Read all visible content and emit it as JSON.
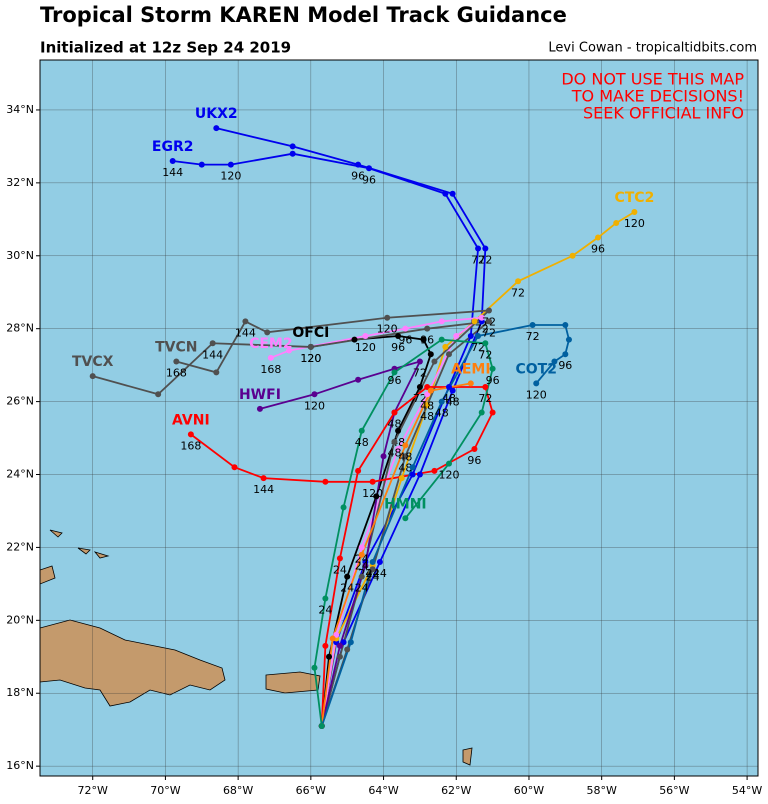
{
  "header": {
    "title": "Tropical Storm KAREN Model Track Guidance",
    "subtitle": "Initialized at 12z Sep 24 2019",
    "credit": "Levi Cowan - tropicaltidbits.com",
    "warning": [
      "DO NOT USE THIS MAP",
      "TO MAKE DECISIONS!",
      "SEEK OFFICIAL INFO"
    ]
  },
  "map": {
    "xlim": [
      -73.45,
      -53.7
    ],
    "ylim": [
      15.73,
      35.37
    ],
    "xticks": [
      {
        "value": -72,
        "label": "72°W"
      },
      {
        "value": -70,
        "label": "70°W"
      },
      {
        "value": -68,
        "label": "68°W"
      },
      {
        "value": -66,
        "label": "66°W"
      },
      {
        "value": -64,
        "label": "64°W"
      },
      {
        "value": -62,
        "label": "62°W"
      },
      {
        "value": -60,
        "label": "60°W"
      },
      {
        "value": -58,
        "label": "58°W"
      },
      {
        "value": -56,
        "label": "56°W"
      },
      {
        "value": -54,
        "label": "54°W"
      }
    ],
    "yticks": [
      {
        "value": 16,
        "label": "16°N"
      },
      {
        "value": 18,
        "label": "18°N"
      },
      {
        "value": 20,
        "label": "20°N"
      },
      {
        "value": 22,
        "label": "22°N"
      },
      {
        "value": 24,
        "label": "24°N"
      },
      {
        "value": 26,
        "label": "26°N"
      },
      {
        "value": 28,
        "label": "28°N"
      },
      {
        "value": 30,
        "label": "30°N"
      },
      {
        "value": 32,
        "label": "32°N"
      },
      {
        "value": 34,
        "label": "34°N"
      }
    ],
    "grid": true
  },
  "tracks": [
    {
      "name": "EGR2",
      "color": "#0000ee",
      "lon": [
        -65.7,
        -65.3,
        -64.5,
        -63.2,
        -62.2,
        -61.6,
        -61.4,
        -62.3,
        -64.4,
        -66.5,
        -68.2,
        -69.0,
        -69.8
      ],
      "lat": [
        17.1,
        19.4,
        21.6,
        24.0,
        26.4,
        27.8,
        30.2,
        31.7,
        32.4,
        32.8,
        32.5,
        32.5,
        32.6
      ],
      "hour_labels": [
        null,
        null,
        "24",
        null,
        "48",
        null,
        "72",
        null,
        "96",
        null,
        "120",
        null,
        "144"
      ]
    },
    {
      "name": "UKX2",
      "color": "#0000ee",
      "lon": [
        -65.7,
        -65.1,
        -64.1,
        -63.0,
        -62.1,
        -61.3,
        -61.2,
        -62.1,
        -64.7,
        -66.5,
        -68.6
      ],
      "lat": [
        17.1,
        19.4,
        21.6,
        24.0,
        26.3,
        28.2,
        30.2,
        31.7,
        32.5,
        33.0,
        33.5
      ],
      "hour_labels": [
        null,
        null,
        "24",
        null,
        "48",
        null,
        "72",
        null,
        "96",
        null,
        null
      ]
    },
    {
      "name": "CTC2",
      "color": "#f0b000",
      "lon": [
        -65.7,
        -65.3,
        -64.3,
        -63.5,
        -62.8,
        -62.3,
        -61.5,
        -60.3,
        -58.8,
        -58.1,
        -57.6,
        -57.1
      ],
      "lat": [
        17.1,
        19.5,
        21.5,
        23.9,
        25.9,
        27.5,
        28.2,
        29.3,
        30.0,
        30.5,
        30.9,
        31.2
      ],
      "hour_labels": [
        null,
        null,
        "24",
        null,
        "48",
        null,
        null,
        "72",
        null,
        "96",
        null,
        "120"
      ]
    },
    {
      "name": "OFCI",
      "color": "#000000",
      "lon": [
        -65.7,
        -65.5,
        -65.0,
        -64.2,
        -63.6,
        -63.0,
        -62.7,
        -62.9,
        -63.6,
        -64.8,
        -66.0
      ],
      "lat": [
        17.1,
        19.0,
        21.2,
        23.4,
        25.2,
        26.4,
        27.3,
        27.7,
        27.8,
        27.7,
        27.5
      ],
      "hour_labels": [
        null,
        null,
        "24",
        null,
        "48",
        "72",
        null,
        null,
        "96",
        null,
        "120"
      ]
    },
    {
      "name": "CEM2",
      "color": "#ff80ff",
      "lon": [
        -65.7,
        -65.3,
        -64.6,
        -63.6,
        -62.8,
        -62.0,
        -61.3,
        -62.4,
        -63.4,
        -64.5,
        -66.6,
        -67.1
      ],
      "lat": [
        17.1,
        19.6,
        22.0,
        24.7,
        26.2,
        27.8,
        28.3,
        28.2,
        28.0,
        27.8,
        27.4,
        27.2
      ],
      "hour_labels": [
        null,
        null,
        "24",
        null,
        "48",
        null,
        "72",
        null,
        "96",
        "120",
        null,
        "168"
      ]
    },
    {
      "name": "TVCN",
      "color": "#505050",
      "lon": [
        -65.7,
        -65.2,
        -64.6,
        -63.7,
        -62.6,
        -61.1,
        -63.9,
        -67.2,
        -67.8,
        -68.6,
        -69.7
      ],
      "lat": [
        17.1,
        19.0,
        21.2,
        24.9,
        27.1,
        28.5,
        28.3,
        27.9,
        28.2,
        26.8,
        27.1
      ],
      "hour_labels": [
        null,
        null,
        "24",
        "48",
        null,
        "72",
        "120",
        null,
        "144",
        null,
        "168"
      ]
    },
    {
      "name": "TVCX",
      "color": "#505050",
      "lon": [
        -65.7,
        -65.0,
        -64.3,
        -63.4,
        -62.2,
        -61.1,
        -62.8,
        -66.0,
        -68.7,
        -70.2,
        -72.0
      ],
      "lat": [
        17.1,
        19.2,
        21.4,
        24.5,
        27.3,
        28.2,
        28.0,
        27.5,
        27.6,
        26.2,
        26.7
      ],
      "hour_labels": [
        null,
        null,
        null,
        "48",
        null,
        "72",
        "96",
        "120",
        "144",
        null,
        null
      ]
    },
    {
      "name": "HWFI",
      "color": "#5a0090",
      "lon": [
        -65.7,
        -65.2,
        -64.5,
        -64.0,
        -63.7,
        -63.0,
        -63.7,
        -64.7,
        -65.9,
        -67.4
      ],
      "lat": [
        17.1,
        19.3,
        21.5,
        24.5,
        25.7,
        27.1,
        26.9,
        26.6,
        26.2,
        25.8
      ],
      "hour_labels": [
        null,
        null,
        null,
        null,
        null,
        "72",
        "96",
        null,
        "120",
        null
      ]
    },
    {
      "name": "AVNI",
      "color": "#ff0000",
      "lon": [
        -65.7,
        -65.6,
        -65.2,
        -64.7,
        -63.7,
        -62.8,
        -61.2,
        -61.0,
        -61.5,
        -62.6,
        -64.3,
        -65.6,
        -67.3,
        -68.1,
        -69.3
      ],
      "lat": [
        17.1,
        19.3,
        21.7,
        24.1,
        25.7,
        26.4,
        26.4,
        25.7,
        24.7,
        24.1,
        23.8,
        23.8,
        23.9,
        24.2,
        25.1
      ],
      "hour_labels": [
        null,
        null,
        "24",
        null,
        "48",
        null,
        "72",
        null,
        "96",
        null,
        "120",
        null,
        "144",
        null,
        "168"
      ]
    },
    {
      "name": "AEMI",
      "color": "#ff7f0e",
      "lon": [
        -65.7,
        -65.4,
        -64.6,
        -63.4,
        -62.7,
        -61.6
      ],
      "lat": [
        17.1,
        19.5,
        21.8,
        24.8,
        26.3,
        26.5
      ],
      "hour_labels": [
        null,
        null,
        "24",
        "48",
        null,
        null
      ]
    },
    {
      "name": "COT2",
      "color": "#0060a0",
      "lon": [
        -65.7,
        -64.9,
        -64.3,
        -63.2,
        -62.4,
        -61.4,
        -59.9,
        -59.0,
        -58.9,
        -59.0,
        -59.3,
        -59.8
      ],
      "lat": [
        17.1,
        19.4,
        21.6,
        24.2,
        26.0,
        27.8,
        28.1,
        28.1,
        27.7,
        27.3,
        27.1,
        26.5
      ],
      "hour_labels": [
        null,
        null,
        "24",
        null,
        "48",
        "72",
        "72",
        null,
        null,
        "96",
        null,
        "120"
      ]
    },
    {
      "name": "HMNI",
      "color": "#009060",
      "lon": [
        -65.7,
        -65.9,
        -65.6,
        -65.1,
        -64.6,
        -63.7,
        -62.4,
        -61.2,
        -61.0,
        -61.3,
        -62.2,
        -63.4
      ],
      "lat": [
        17.1,
        18.7,
        20.6,
        23.1,
        25.2,
        26.8,
        27.7,
        27.6,
        26.9,
        25.7,
        24.3,
        22.8
      ],
      "hour_labels": [
        null,
        null,
        "24",
        null,
        "48",
        null,
        null,
        "72",
        "96",
        null,
        "120",
        null
      ]
    }
  ]
}
